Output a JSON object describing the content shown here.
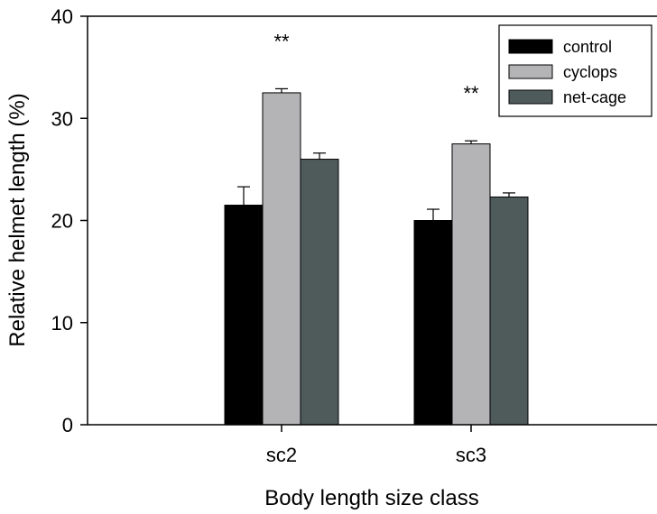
{
  "chart_data": {
    "type": "bar",
    "categories": [
      "sc2",
      "sc3"
    ],
    "series": [
      {
        "name": "control",
        "values": [
          21.5,
          20.0
        ],
        "errors": [
          1.8,
          1.1
        ],
        "color": "#000000"
      },
      {
        "name": "cyclops",
        "values": [
          32.5,
          27.5
        ],
        "errors": [
          0.4,
          0.3
        ],
        "color": "#b4b4b7"
      },
      {
        "name": "net-cage",
        "values": [
          26.0,
          22.3
        ],
        "errors": [
          0.6,
          0.4
        ],
        "color": "#4f5a5b"
      }
    ],
    "annotations": [
      {
        "category": "sc2",
        "text": "**"
      },
      {
        "category": "sc3",
        "text": "**"
      }
    ],
    "xlabel": "Body length size class",
    "ylabel": "Relative helmet length (%)",
    "ylim": [
      0,
      40
    ],
    "yticks": [
      0,
      10,
      20,
      30,
      40
    ],
    "legend_position": "top-right",
    "grid": false
  }
}
